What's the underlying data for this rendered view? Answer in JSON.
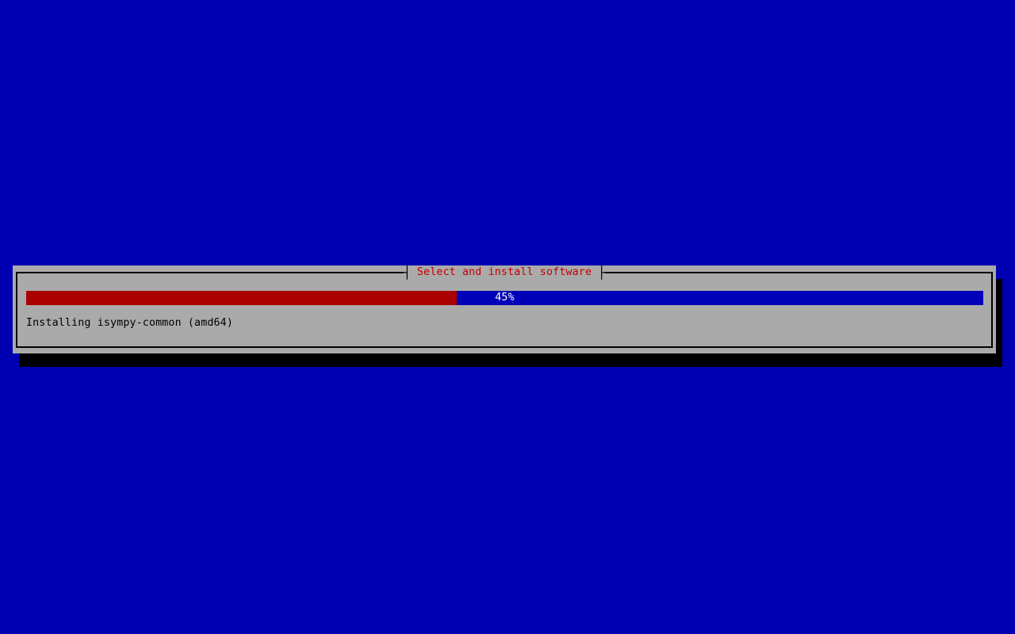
{
  "screen": {
    "background_color": "#0000b2"
  },
  "dialog": {
    "title": "Select and install software",
    "title_color": "#c00000",
    "background_color": "#aaaaaa",
    "border_color": "#000000",
    "shadow_color": "#000000",
    "border_tick_left": "┤",
    "border_tick_right": "├",
    "progress": {
      "percent": 45,
      "label": "45%",
      "filled_color": "#aa0000",
      "empty_color": "#0000b8",
      "label_color": "#ffffff"
    },
    "status_text": "Installing isympy-common (amd64)"
  }
}
